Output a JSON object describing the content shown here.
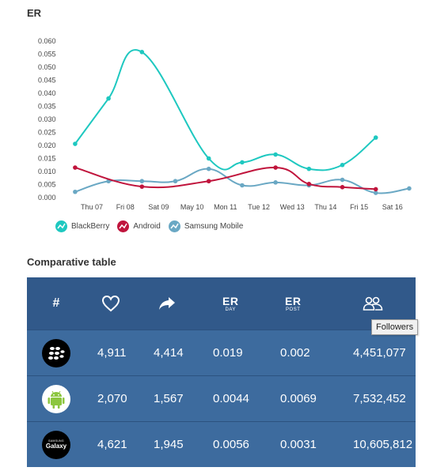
{
  "chart_section": {
    "title": "ER"
  },
  "chart_data": {
    "type": "line",
    "title": "ER",
    "categories": [
      "Thu 07",
      "Fri 08",
      "Sat 09",
      "May 10",
      "Mon 11",
      "Tue 12",
      "Wed 13",
      "Thu 14",
      "Fri 15",
      "Sat 16"
    ],
    "ylim": [
      0,
      0.06
    ],
    "yticks": [
      "0.000",
      "0.005",
      "0.010",
      "0.015",
      "0.020",
      "0.025",
      "0.030",
      "0.035",
      "0.040",
      "0.045",
      "0.050",
      "0.055",
      "0.060"
    ],
    "grid": false,
    "legend_position": "bottom-left",
    "series": [
      {
        "name": "BlackBerry",
        "color": "#1ec8c0",
        "x": [
          -0.5,
          0.5,
          1.5,
          3.5,
          4.5,
          5.5,
          6.5,
          7.5,
          8.5
        ],
        "values": [
          0.0206,
          0.038,
          0.0558,
          0.015,
          0.0135,
          0.0165,
          0.011,
          0.0125,
          0.023
        ]
      },
      {
        "name": "Android",
        "color": "#c0143c",
        "x": [
          -0.5,
          1.5,
          3.5,
          5.5,
          6.5,
          7.5,
          8.5
        ],
        "values": [
          0.0115,
          0.0042,
          0.0063,
          0.0115,
          0.0052,
          0.004,
          0.0032
        ]
      },
      {
        "name": "Samsung Mobile",
        "color": "#6aa8c4",
        "x": [
          -0.5,
          0.5,
          1.5,
          2.5,
          3.5,
          4.5,
          5.5,
          6.5,
          7.5,
          8.5,
          9.5
        ],
        "values": [
          0.0022,
          0.0063,
          0.0063,
          0.0063,
          0.011,
          0.0047,
          0.0058,
          0.0047,
          0.0068,
          0.0018,
          0.0035
        ]
      }
    ]
  },
  "table_section": {
    "title": "Comparative table"
  },
  "table": {
    "headers": {
      "hash": "#",
      "likes_icon": "heart-icon",
      "shares_icon": "share-icon",
      "er_day": {
        "big": "ER",
        "small": "DAY"
      },
      "er_post": {
        "big": "ER",
        "small": "POST"
      },
      "followers_icon": "followers-icon"
    },
    "rows": [
      {
        "brand": "BlackBerry",
        "logo_icon": "blackberry-logo-icon",
        "likes": "4,911",
        "shares": "4,414",
        "er_day": "0.019",
        "er_post": "0.002",
        "followers": "4,451,077"
      },
      {
        "brand": "Android",
        "logo_icon": "android-logo-icon",
        "likes": "2,070",
        "shares": "1,567",
        "er_day": "0.0044",
        "er_post": "0.0069",
        "followers": "7,532,452"
      },
      {
        "brand": "Samsung Mobile",
        "logo_icon": "samsung-galaxy-logo-icon",
        "logo_text_top": "SAMSUNG",
        "logo_text_bottom": "Galaxy",
        "likes": "4,621",
        "shares": "1,945",
        "er_day": "0.0056",
        "er_post": "0.0031",
        "followers": "10,605,812"
      }
    ]
  },
  "tooltip": {
    "text": "Followers"
  }
}
